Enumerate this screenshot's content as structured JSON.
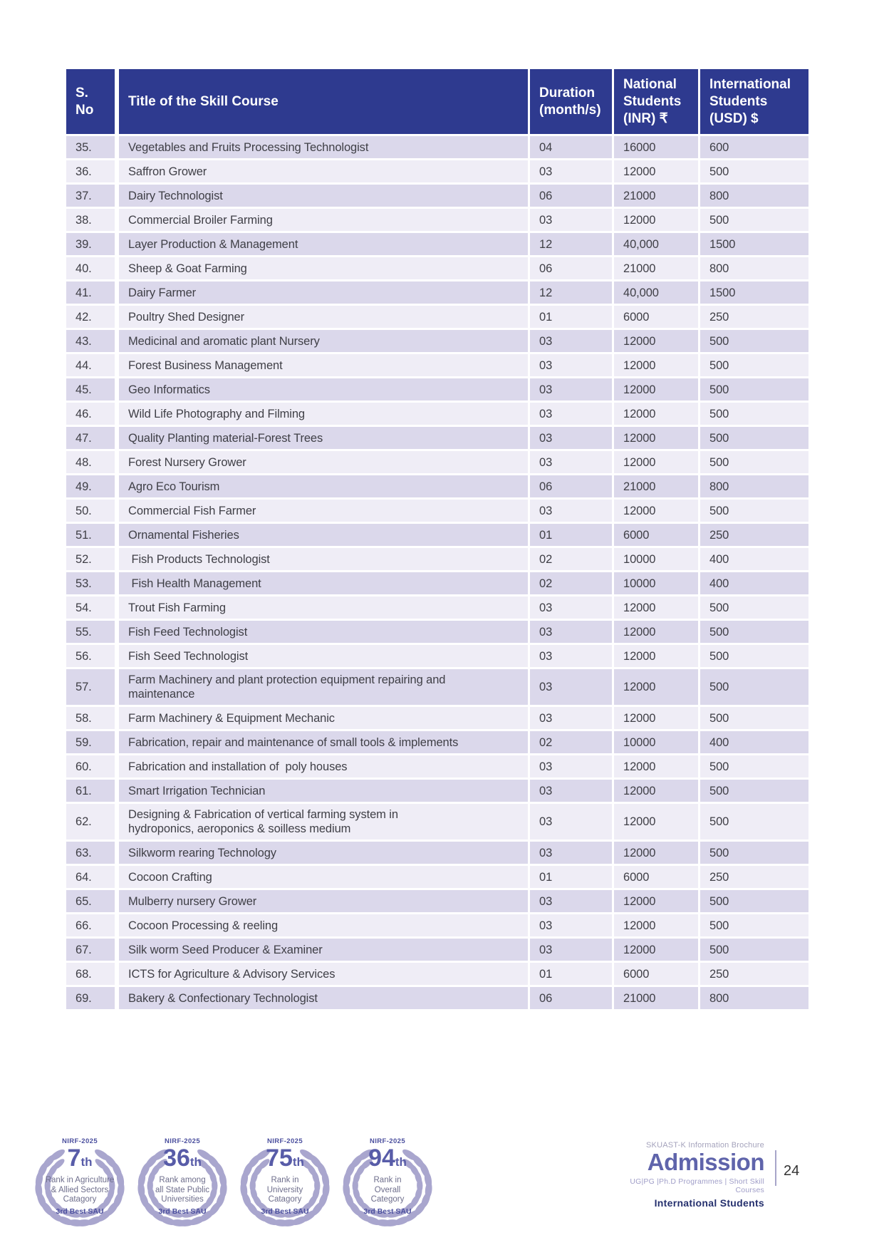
{
  "colors": {
    "header_bg": "#2E3A8F",
    "row_dark": "#DBD8EB",
    "row_light": "#EFEDF6",
    "body_text": "#3F3F46",
    "wreath": "#A9A6CE",
    "badge_text": "#4B4F9E",
    "admission_accent": "#5F64AB"
  },
  "table": {
    "headers": {
      "sno": "S.\nNo",
      "title": "Title of  the Skill Course",
      "duration": "Duration\n(month/s)",
      "national": "National\nStudents\n(INR) ₹",
      "international": "International\nStudents\n(USD) $"
    },
    "rows": [
      {
        "sno": "35.",
        "title": "Vegetables and Fruits Processing Technologist",
        "duration": "04",
        "inr": "16000",
        "usd": "600"
      },
      {
        "sno": "36.",
        "title": "Saffron Grower",
        "duration": "03",
        "inr": "12000",
        "usd": "500"
      },
      {
        "sno": "37.",
        "title": "Dairy Technologist",
        "duration": "06",
        "inr": "21000",
        "usd": "800"
      },
      {
        "sno": "38.",
        "title": "Commercial Broiler Farming",
        "duration": "03",
        "inr": "12000",
        "usd": "500"
      },
      {
        "sno": "39.",
        "title": "Layer Production & Management",
        "duration": "12",
        "inr": "40,000",
        "usd": "1500"
      },
      {
        "sno": "40.",
        "title": "Sheep & Goat Farming",
        "duration": "06",
        "inr": "21000",
        "usd": "800"
      },
      {
        "sno": "41.",
        "title": "Dairy Farmer",
        "duration": "12",
        "inr": "40,000",
        "usd": "1500"
      },
      {
        "sno": "42.",
        "title": "Poultry Shed Designer",
        "duration": "01",
        "inr": "6000",
        "usd": "250"
      },
      {
        "sno": "43.",
        "title": "Medicinal and aromatic plant Nursery",
        "duration": "03",
        "inr": "12000",
        "usd": "500"
      },
      {
        "sno": "44.",
        "title": "Forest Business Management",
        "duration": "03",
        "inr": "12000",
        "usd": "500"
      },
      {
        "sno": "45.",
        "title": "Geo Informatics",
        "duration": "03",
        "inr": "12000",
        "usd": "500"
      },
      {
        "sno": "46.",
        "title": "Wild Life Photography and Filming",
        "duration": "03",
        "inr": "12000",
        "usd": "500"
      },
      {
        "sno": "47.",
        "title": "Quality Planting material-Forest Trees",
        "duration": "03",
        "inr": "12000",
        "usd": "500"
      },
      {
        "sno": "48.",
        "title": "Forest Nursery Grower",
        "duration": "03",
        "inr": "12000",
        "usd": "500"
      },
      {
        "sno": "49.",
        "title": "Agro Eco Tourism",
        "duration": " 06",
        "inr": "21000",
        "usd": "800"
      },
      {
        "sno": "50.",
        "title": "Commercial Fish Farmer",
        "duration": "03",
        "inr": "12000",
        "usd": "500"
      },
      {
        "sno": "51.",
        "title": "Ornamental Fisheries",
        "duration": "01",
        "inr": "6000",
        "usd": "250"
      },
      {
        "sno": "52.",
        "title": " Fish Products Technologist",
        "duration": "02",
        "inr": "10000",
        "usd": "400"
      },
      {
        "sno": "53.",
        "title": " Fish Health Management",
        "duration": "02",
        "inr": "10000",
        "usd": "400"
      },
      {
        "sno": "54.",
        "title": "Trout Fish Farming",
        "duration": "03",
        "inr": "12000",
        "usd": "500"
      },
      {
        "sno": "55.",
        "title": "Fish Feed Technologist",
        "duration": "03",
        "inr": "12000",
        "usd": "500"
      },
      {
        "sno": "56.",
        "title": "Fish Seed Technologist",
        "duration": "03",
        "inr": "12000",
        "usd": "500"
      },
      {
        "sno": "57.",
        "title": "Farm Machinery and plant protection equipment repairing and maintenance",
        "duration": "03",
        "inr": "12000",
        "usd": "500"
      },
      {
        "sno": "58.",
        "title": "Farm Machinery & Equipment Mechanic",
        "duration": "03",
        "inr": "12000",
        "usd": "500"
      },
      {
        "sno": "59.",
        "title": "Fabrication, repair and maintenance of small tools & implements",
        "duration": "02",
        "inr": "10000",
        "usd": "400"
      },
      {
        "sno": "60.",
        "title": "Fabrication and installation of  poly houses",
        "duration": "03",
        "inr": "12000",
        "usd": "500"
      },
      {
        "sno": "61.",
        "title": "Smart Irrigation Technician",
        "duration": "03",
        "inr": "12000",
        "usd": "500"
      },
      {
        "sno": "62.",
        "title": "Designing & Fabrication of vertical farming system in hydroponics, aeroponics & soilless medium",
        "duration": "03",
        "inr": "12000",
        "usd": "500"
      },
      {
        "sno": "63.",
        "title": "Silkworm rearing Technology",
        "duration": "03",
        "inr": "12000",
        "usd": "500"
      },
      {
        "sno": "64.",
        "title": "Cocoon Crafting",
        "duration": "01",
        "inr": "6000",
        "usd": "250"
      },
      {
        "sno": "65.",
        "title": "Mulberry nursery Grower",
        "duration": "03",
        "inr": "12000",
        "usd": "500"
      },
      {
        "sno": "66.",
        "title": "Cocoon Processing & reeling",
        "duration": "03",
        "inr": "12000",
        "usd": "500"
      },
      {
        "sno": "67.",
        "title": "Silk worm Seed Producer & Examiner",
        "duration": "03",
        "inr": "12000",
        "usd": "500"
      },
      {
        "sno": "68.",
        "title": "ICTS for Agriculture & Advisory Services",
        "duration": "01",
        "inr": "6000",
        "usd": "250"
      },
      {
        "sno": "69.",
        "title": "Bakery & Confectionary Technologist",
        "duration": "06",
        "inr": "21000",
        "usd": "800"
      }
    ]
  },
  "badges": [
    {
      "label": "NIRF-2025",
      "rank_number": "7",
      "rank_suffix": "th",
      "lines": "Rank in  Agriculture\n& Allied Sectors\nCatagory",
      "footer": "3rd Best SAU"
    },
    {
      "label": "NIRF-2025",
      "rank_number": "36",
      "rank_suffix": "th",
      "lines": "Rank among\nall State Public\nUniversities",
      "footer": "3rd Best SAU"
    },
    {
      "label": "NIRF-2025",
      "rank_number": "75",
      "rank_suffix": "th",
      "lines": "Rank in\nUniversity\nCatagory",
      "footer": "3rd Best SAU"
    },
    {
      "label": "NIRF-2025",
      "rank_number": "94",
      "rank_suffix": "th",
      "lines": "Rank in\nOverall\nCategory",
      "footer": "3rd Best SAU"
    }
  ],
  "footer": {
    "brochure": "SKUAST-K Information Brochure",
    "title": "Admission",
    "programs": "UG|PG |Ph.D Programmes | Short Skill Courses",
    "audience": "International Students",
    "page_number": "24"
  }
}
